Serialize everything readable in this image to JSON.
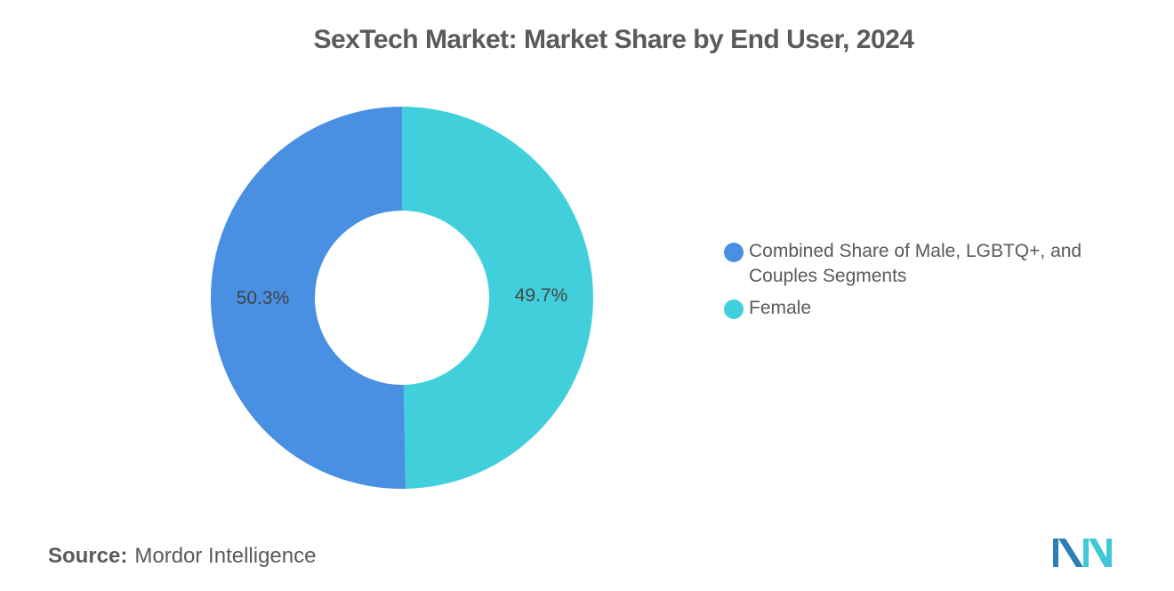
{
  "chart_data": {
    "type": "pie",
    "variant": "donut",
    "title": "SexTech Market: Market Share by End User, 2024",
    "slices": [
      {
        "name": "Female",
        "value": 49.7,
        "label": "49.7%",
        "color": "#41d0db"
      },
      {
        "name": "Combined Share of Male, LGBTQ+, and Couples Segments",
        "value": 50.3,
        "label": "50.3%",
        "color": "#4a90e2"
      }
    ],
    "legend_position": "right",
    "legend": [
      {
        "label": "Combined Share of Male, LGBTQ+, and Couples Segments",
        "color": "#4a90e2"
      },
      {
        "label": "Female",
        "color": "#41d0db"
      }
    ]
  },
  "source": {
    "key": "Source:",
    "value": "Mordor Intelligence"
  },
  "logo": {
    "icon": "mordor-intelligence-logo",
    "colors": [
      "#2b7fb8",
      "#42c8d4"
    ]
  }
}
